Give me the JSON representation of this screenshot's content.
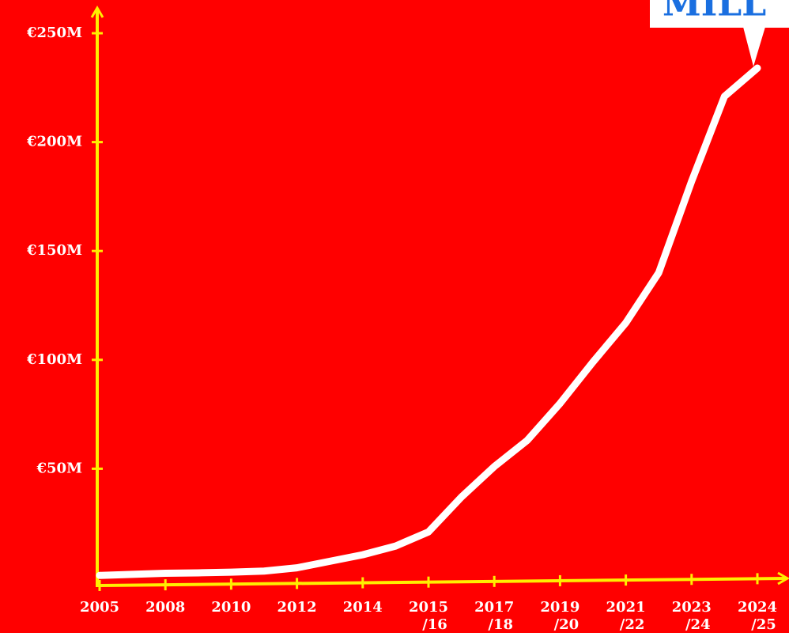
{
  "chart_data": {
    "type": "line",
    "annotation": "MILL",
    "categories": [
      "2005",
      null,
      "2008",
      null,
      "2010",
      null,
      "2012",
      null,
      "2014",
      null,
      "2015\n/16",
      null,
      "2017\n/18",
      null,
      "2019\n/20",
      null,
      "2021\n/22",
      null,
      "2023\n/24",
      null,
      "2024\n/25"
    ],
    "series": [
      {
        "name": null,
        "color": "#ffffff",
        "values": [
          1,
          1.5,
          2,
          2.2,
          2.5,
          3,
          4.5,
          7.5,
          10.5,
          14.5,
          21,
          37,
          51,
          63,
          80,
          99,
          117,
          140,
          182,
          221,
          234
        ]
      }
    ],
    "ylim": [
      0,
      250
    ],
    "yticks": [
      {
        "value": 50,
        "label": "€50M"
      },
      {
        "value": 100,
        "label": "€100M"
      },
      {
        "value": 150,
        "label": "€150M"
      },
      {
        "value": 200,
        "label": "€200M"
      },
      {
        "value": 250,
        "label": "€250M"
      }
    ],
    "grid": false,
    "axis_color": "#ffee00",
    "background": "#ff0000"
  }
}
